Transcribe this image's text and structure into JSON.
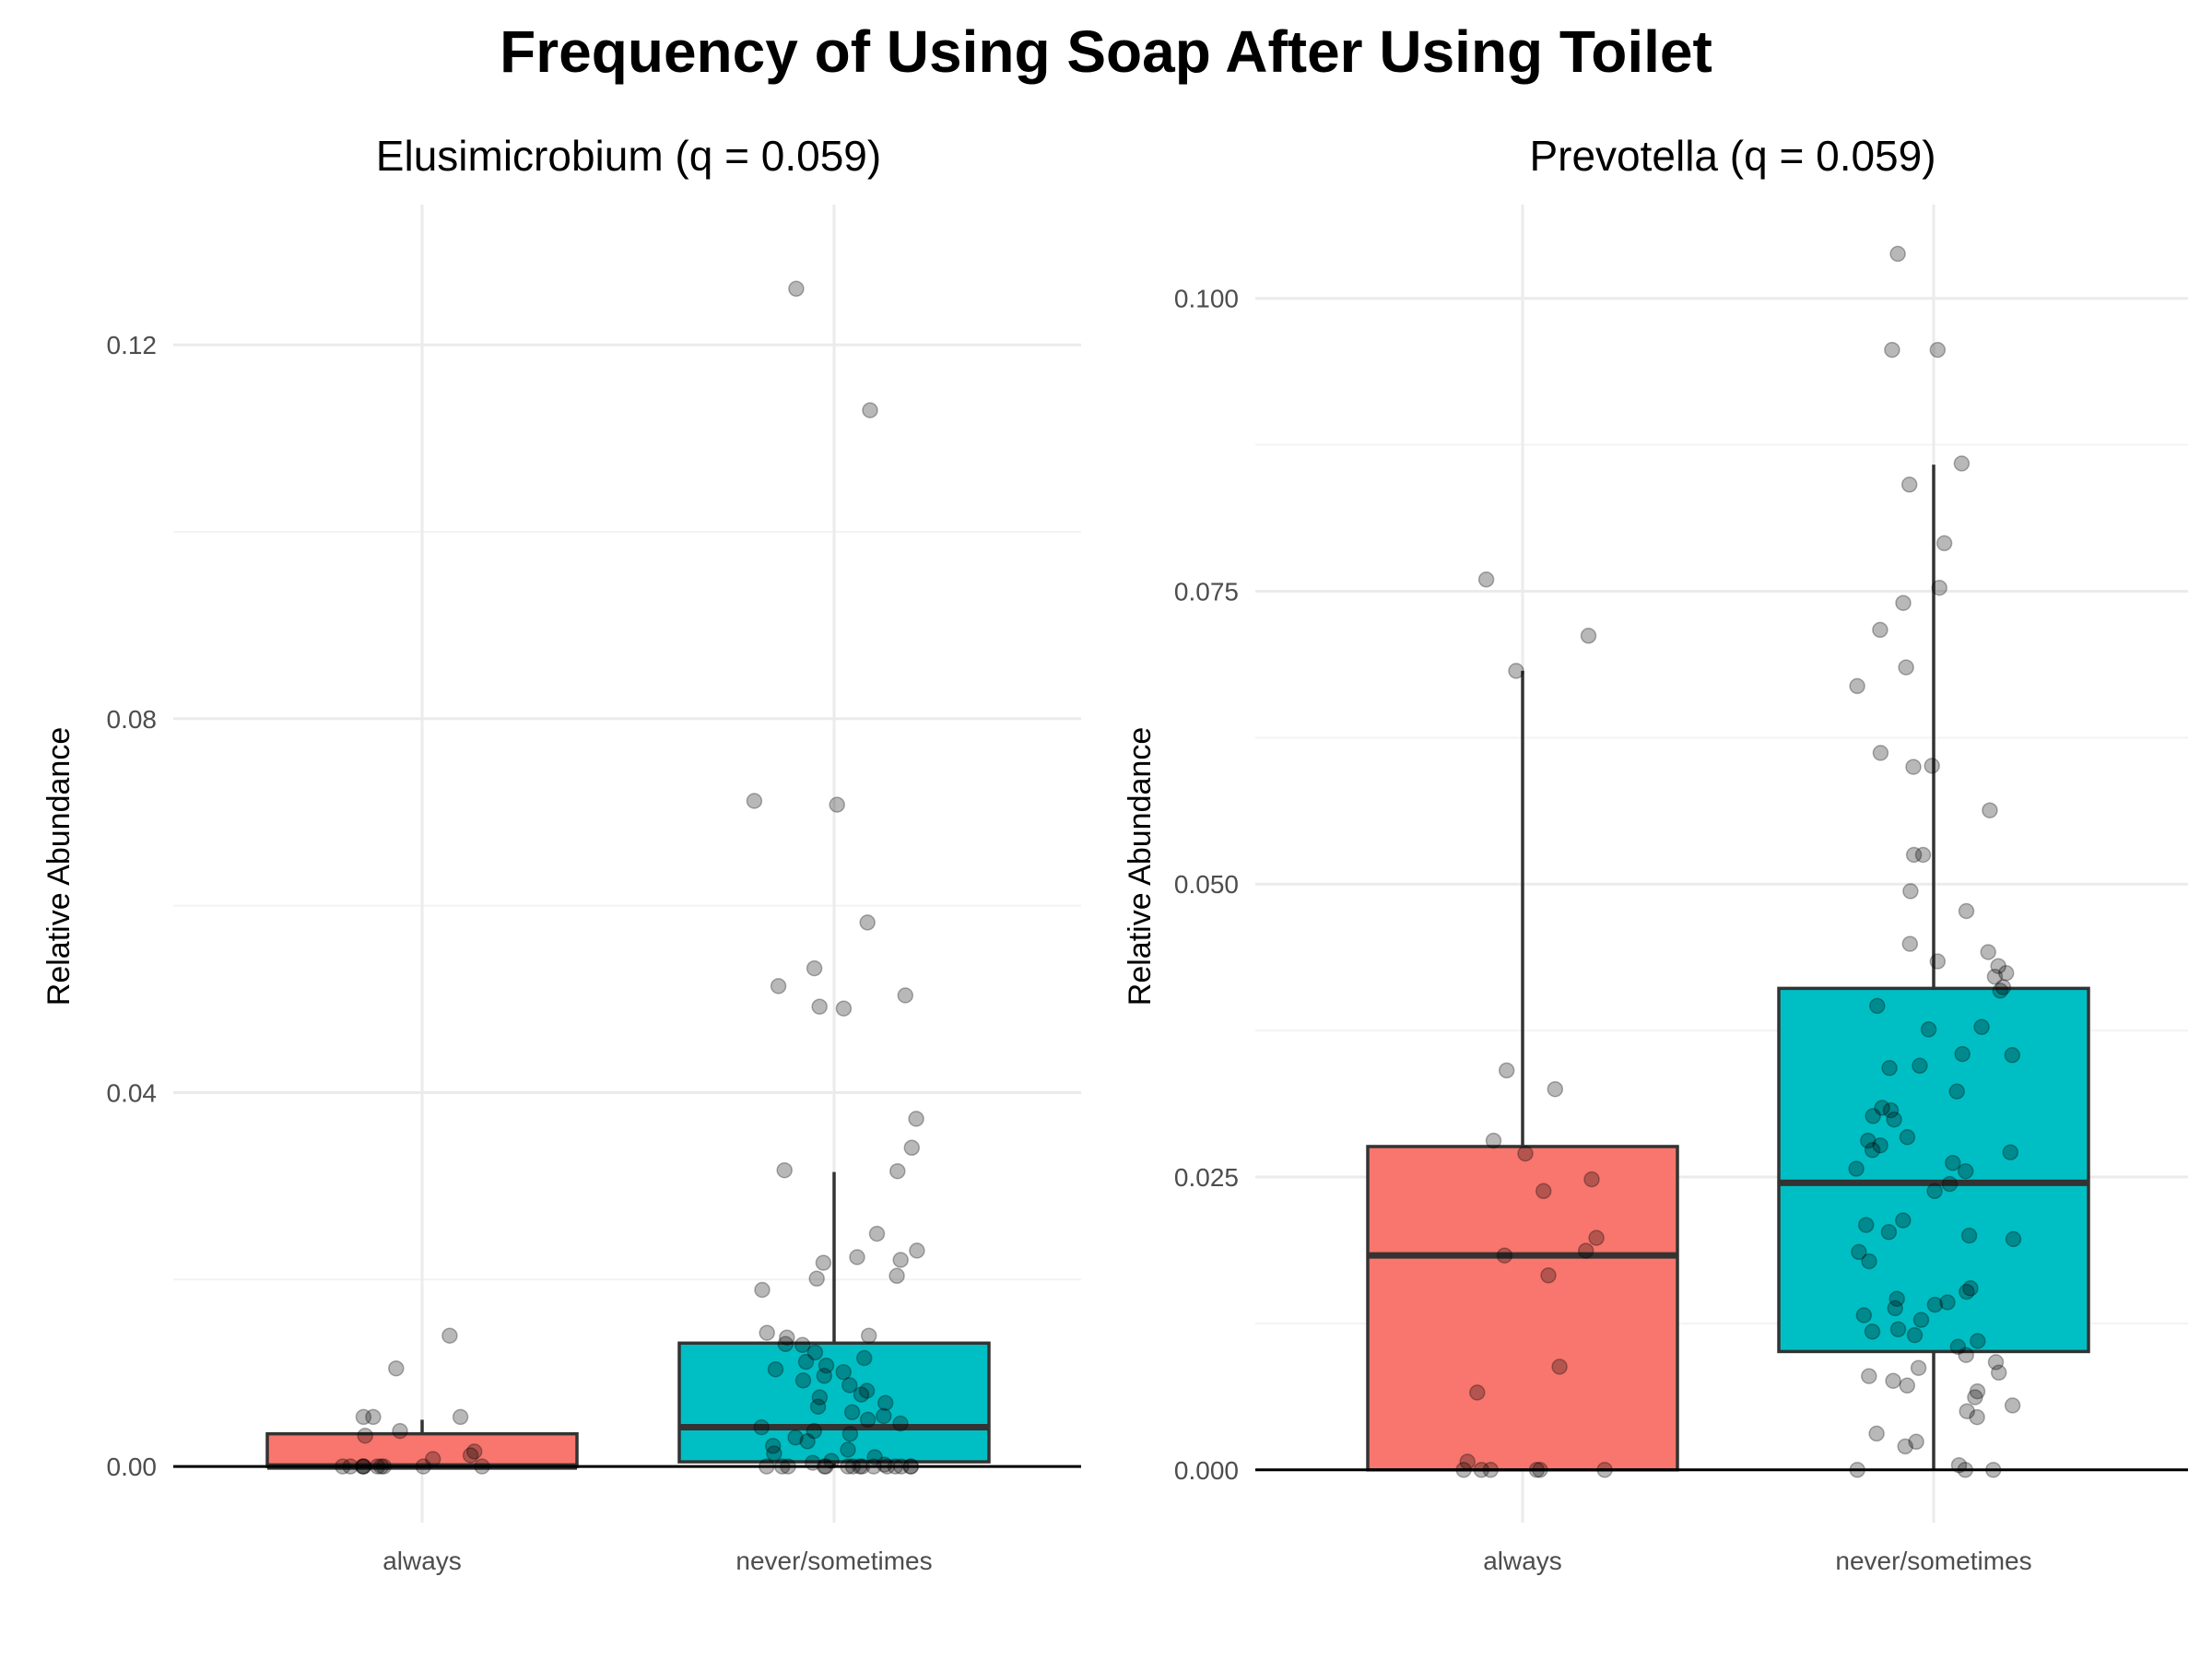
{
  "title": "Frequency of Using Soap After Using Toilet",
  "colors": {
    "always": "#F8766D",
    "never_sometimes": "#00BFC4"
  },
  "chart_data": [
    {
      "type": "box",
      "title": "Elusimicrobium (q = 0.059)",
      "ylabel": "Relative Abundance",
      "xlabel": "",
      "categories": [
        "always",
        "never/sometimes"
      ],
      "ylim": [
        -0.006,
        0.135
      ],
      "yticks": [
        0.0,
        0.04,
        0.08,
        0.12
      ],
      "ytick_labels": [
        "0.00",
        "0.04",
        "0.08",
        "0.12"
      ],
      "grid": true,
      "boxes": [
        {
          "category": "always",
          "q1": 0.0,
          "median": 0.0,
          "q3": 0.0035,
          "lower": 0.0,
          "upper": 0.005
        },
        {
          "category": "never/sometimes",
          "q1": 0.0005,
          "median": 0.0042,
          "q3": 0.0132,
          "lower": 0.0,
          "upper": 0.0315
        }
      ],
      "points": [
        {
          "category": "always",
          "values": [
            0.0,
            0.0,
            0.0,
            0.0,
            0.0,
            0.0,
            0.0,
            0.0,
            0.0,
            0.0,
            0.0016,
            0.0033,
            0.0038,
            0.0053,
            0.0053,
            0.0053,
            0.0008,
            0.0012,
            0.0105,
            0.014
          ]
        },
        {
          "category": "never/sometimes",
          "values": [
            0.126,
            0.113,
            0.0712,
            0.0708,
            0.0582,
            0.0533,
            0.0514,
            0.0504,
            0.0492,
            0.049,
            0.0372,
            0.0341,
            0.0317,
            0.0316,
            0.0249,
            0.0231,
            0.0224,
            0.0221,
            0.0218,
            0.0204,
            0.0201,
            0.0189,
            0.0143,
            0.014,
            0.0138,
            0.0131,
            0.013,
            0.0122,
            0.0116,
            0.0112,
            0.0108,
            0.0104,
            0.0101,
            0.0097,
            0.0092,
            0.0087,
            0.0081,
            0.0077,
            0.0074,
            0.0068,
            0.0064,
            0.0058,
            0.0054,
            0.005,
            0.0046,
            0.0042,
            0.0038,
            0.0035,
            0.0031,
            0.0027,
            0.0022,
            0.0018,
            0.0014,
            0.001,
            0.0006,
            0.0004,
            0.0002,
            0.0,
            0.0,
            0.0,
            0.0,
            0.0,
            0.0,
            0.0,
            0.0,
            0.0,
            0.0,
            0.0,
            0.0,
            0.0,
            0.0,
            0.0
          ]
        }
      ]
    },
    {
      "type": "box",
      "title": "Prevotella (q = 0.059)",
      "ylabel": "Relative Abundance",
      "xlabel": "",
      "categories": [
        "always",
        "never/sometimes"
      ],
      "ylim": [
        -0.0045,
        0.108
      ],
      "yticks": [
        0.0,
        0.025,
        0.05,
        0.075,
        0.1
      ],
      "ytick_labels": [
        "0.000",
        "0.025",
        "0.050",
        "0.075",
        "0.100"
      ],
      "grid": true,
      "boxes": [
        {
          "category": "always",
          "q1": 0.0,
          "median": 0.0183,
          "q3": 0.0276,
          "lower": 0.0,
          "upper": 0.0682
        },
        {
          "category": "never/sometimes",
          "q1": 0.0101,
          "median": 0.0245,
          "q3": 0.0411,
          "lower": 0.0,
          "upper": 0.0858
        }
      ],
      "points": [
        {
          "category": "always",
          "values": [
            0.076,
            0.0712,
            0.0682,
            0.0341,
            0.0325,
            0.0281,
            0.027,
            0.0248,
            0.0238,
            0.0198,
            0.0187,
            0.0183,
            0.0166,
            0.0088,
            0.0066,
            0.0007,
            0.0,
            0.0,
            0.0,
            0.0,
            0.0,
            0.0
          ]
        },
        {
          "category": "never/sometimes",
          "values": [
            0.1038,
            0.0956,
            0.0956,
            0.0859,
            0.0841,
            0.0791,
            0.0753,
            0.074,
            0.0717,
            0.0685,
            0.0669,
            0.0612,
            0.0601,
            0.06,
            0.0563,
            0.0525,
            0.0525,
            0.0494,
            0.0477,
            0.0449,
            0.0442,
            0.0434,
            0.043,
            0.0424,
            0.0421,
            0.0412,
            0.0409,
            0.0396,
            0.0378,
            0.0376,
            0.0355,
            0.0354,
            0.0345,
            0.0343,
            0.0323,
            0.0309,
            0.0307,
            0.0302,
            0.0299,
            0.0284,
            0.0281,
            0.0277,
            0.0273,
            0.0271,
            0.0262,
            0.0257,
            0.0255,
            0.0244,
            0.0238,
            0.0213,
            0.0209,
            0.0203,
            0.02,
            0.0197,
            0.0186,
            0.0178,
            0.0155,
            0.0152,
            0.0146,
            0.0143,
            0.0141,
            0.0138,
            0.0132,
            0.0128,
            0.012,
            0.0118,
            0.0115,
            0.011,
            0.0105,
            0.0098,
            0.0092,
            0.0087,
            0.0083,
            0.008,
            0.0076,
            0.0072,
            0.0067,
            0.0062,
            0.0055,
            0.005,
            0.0045,
            0.0031,
            0.0024,
            0.002,
            0.0004,
            0.0,
            0.0,
            0.0
          ]
        }
      ]
    }
  ]
}
